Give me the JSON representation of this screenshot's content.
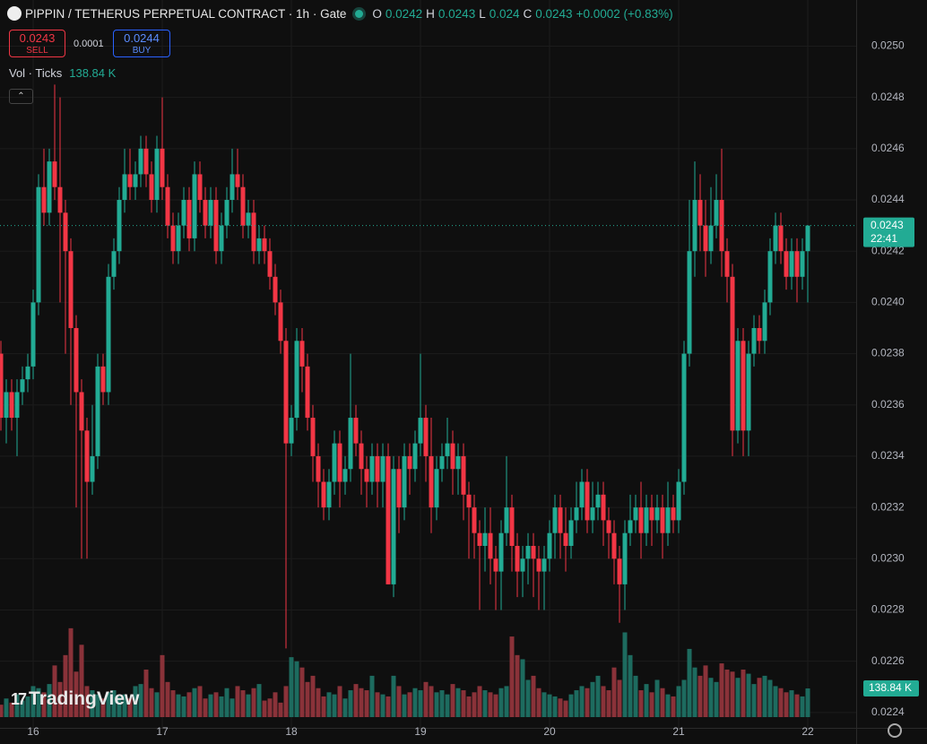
{
  "header": {
    "title": "PIPPIN / TETHERUS PERPETUAL CONTRACT · 1h · Gate",
    "ohlc_letters": [
      "O",
      "H",
      "L",
      "C"
    ],
    "change": "+0.0002 (+0.83%)",
    "sell": 0.0243,
    "sell_label": "SELL",
    "spread": 0.0001,
    "buy": 0.0244,
    "buy_label": "BUY",
    "indicator": "Vol · Ticks",
    "countdown": "22:41",
    "watermark": "TradingView"
  },
  "chart_data": {
    "type": "candlestick",
    "up_color": "#22ab94",
    "down_color": "#f23645",
    "up_volume_color": "#1d6b5f",
    "down_volume_color": "#8a3239",
    "grid": true,
    "categories": [
      null,
      null,
      null,
      null,
      null,
      null,
      "16",
      null,
      null,
      null,
      null,
      null,
      null,
      null,
      null,
      null,
      null,
      null,
      null,
      null,
      null,
      null,
      null,
      null,
      null,
      null,
      null,
      null,
      null,
      null,
      "17",
      null,
      null,
      null,
      null,
      null,
      null,
      null,
      null,
      null,
      null,
      null,
      null,
      null,
      null,
      null,
      null,
      null,
      null,
      null,
      null,
      null,
      null,
      null,
      "18",
      null,
      null,
      null,
      null,
      null,
      null,
      null,
      null,
      null,
      null,
      null,
      null,
      null,
      null,
      null,
      null,
      null,
      null,
      null,
      null,
      null,
      null,
      null,
      "19",
      null,
      null,
      null,
      null,
      null,
      null,
      null,
      null,
      null,
      null,
      null,
      null,
      null,
      null,
      null,
      null,
      null,
      null,
      null,
      null,
      null,
      null,
      null,
      "20",
      null,
      null,
      null,
      null,
      null,
      null,
      null,
      null,
      null,
      null,
      null,
      null,
      null,
      null,
      null,
      null,
      null,
      null,
      null,
      null,
      null,
      null,
      null,
      "21",
      null,
      null,
      null,
      null,
      null,
      null,
      null,
      null,
      null,
      null,
      null,
      null,
      null,
      null,
      null,
      null,
      null,
      null,
      null,
      null,
      null,
      null,
      null,
      "22"
    ],
    "open": [
      0.0238,
      0.02355,
      0.02365,
      0.02355,
      0.02365,
      0.0237,
      0.02375,
      0.024,
      0.02445,
      0.02435,
      0.02455,
      0.02445,
      0.02435,
      0.0242,
      0.0239,
      0.02365,
      0.0235,
      0.0233,
      0.0234,
      0.02375,
      0.02365,
      0.0241,
      0.0242,
      0.0244,
      0.0245,
      0.02445,
      0.0245,
      0.0246,
      0.0245,
      0.0244,
      0.0246,
      0.02445,
      0.0243,
      0.0242,
      0.0243,
      0.0244,
      0.02425,
      0.0245,
      0.0244,
      0.0243,
      0.0244,
      0.0242,
      0.0243,
      0.0244,
      0.0245,
      0.02445,
      0.0243,
      0.02435,
      0.0242,
      0.02425,
      0.0242,
      0.0241,
      0.024,
      0.02385,
      0.02345,
      0.02355,
      0.02385,
      0.02375,
      0.02355,
      0.0234,
      0.0233,
      0.0232,
      0.0233,
      0.02345,
      0.0233,
      0.02335,
      0.02355,
      0.02345,
      0.02335,
      0.0233,
      0.0234,
      0.0233,
      0.0234,
      0.0229,
      0.02335,
      0.0232,
      0.0234,
      0.02335,
      0.02345,
      0.02355,
      0.0234,
      0.0232,
      0.02335,
      0.0234,
      0.02345,
      0.02335,
      0.0234,
      0.02325,
      0.0232,
      0.0231,
      0.02305,
      0.0231,
      0.023,
      0.02295,
      0.0231,
      0.0232,
      0.02305,
      0.02295,
      0.023,
      0.02305,
      0.023,
      0.02295,
      0.023,
      0.0231,
      0.0232,
      0.0231,
      0.02305,
      0.02315,
      0.0232,
      0.0233,
      0.02315,
      0.0232,
      0.02325,
      0.02315,
      0.0231,
      0.023,
      0.0229,
      0.0231,
      0.02315,
      0.0232,
      0.0231,
      0.0232,
      0.02315,
      0.0232,
      0.0231,
      0.0232,
      0.02315,
      0.0233,
      0.0238,
      0.0242,
      0.0244,
      0.0243,
      0.0242,
      0.0243,
      0.0244,
      0.0242,
      0.0241,
      0.0235,
      0.02385,
      0.0235,
      0.0238,
      0.0239,
      0.02385,
      0.024,
      0.0242,
      0.0243,
      0.0242,
      0.0241,
      0.0242,
      0.0241,
      0.0242
    ],
    "high": [
      0.02385,
      0.0237,
      0.0237,
      0.0237,
      0.02375,
      0.0238,
      0.02405,
      0.0245,
      0.0246,
      0.0246,
      0.02485,
      0.0248,
      0.0244,
      0.02425,
      0.02395,
      0.0237,
      0.02355,
      0.0236,
      0.0238,
      0.0238,
      0.02415,
      0.02425,
      0.02445,
      0.0246,
      0.0246,
      0.02455,
      0.02465,
      0.02465,
      0.02455,
      0.02465,
      0.0248,
      0.0245,
      0.02435,
      0.02435,
      0.02445,
      0.02445,
      0.02455,
      0.02455,
      0.02445,
      0.02445,
      0.02445,
      0.02435,
      0.02445,
      0.0246,
      0.0246,
      0.0245,
      0.0244,
      0.0244,
      0.0243,
      0.0243,
      0.02425,
      0.02415,
      0.02405,
      0.0239,
      0.0236,
      0.0239,
      0.0239,
      0.0238,
      0.0236,
      0.02345,
      0.02335,
      0.02335,
      0.0235,
      0.0235,
      0.0234,
      0.0238,
      0.0236,
      0.0235,
      0.0234,
      0.02345,
      0.02345,
      0.02345,
      0.02345,
      0.0234,
      0.0234,
      0.02345,
      0.02345,
      0.0235,
      0.0238,
      0.0236,
      0.02355,
      0.0234,
      0.02345,
      0.02355,
      0.0235,
      0.02345,
      0.02345,
      0.0233,
      0.02325,
      0.02315,
      0.0232,
      0.0232,
      0.02305,
      0.02315,
      0.0234,
      0.02325,
      0.0231,
      0.02305,
      0.0231,
      0.0231,
      0.02305,
      0.02305,
      0.02315,
      0.02325,
      0.02325,
      0.0232,
      0.0232,
      0.0233,
      0.02335,
      0.02335,
      0.0233,
      0.0233,
      0.0233,
      0.0232,
      0.02315,
      0.02305,
      0.02315,
      0.02325,
      0.02325,
      0.0233,
      0.02325,
      0.02325,
      0.02325,
      0.02325,
      0.0233,
      0.02325,
      0.02335,
      0.02385,
      0.0244,
      0.02455,
      0.0245,
      0.0244,
      0.02445,
      0.0245,
      0.0246,
      0.02425,
      0.02415,
      0.0239,
      0.0239,
      0.02385,
      0.02395,
      0.02395,
      0.02405,
      0.02425,
      0.02435,
      0.02435,
      0.02425,
      0.02425,
      0.02425,
      0.02425,
      0.0243
    ],
    "low": [
      0.0235,
      0.02345,
      0.0235,
      0.0234,
      0.0236,
      0.02365,
      0.0237,
      0.02395,
      0.0243,
      0.0243,
      0.0244,
      0.024,
      0.0238,
      0.0236,
      0.0232,
      0.023,
      0.023,
      0.02325,
      0.02335,
      0.0236,
      0.0236,
      0.02405,
      0.02415,
      0.02435,
      0.0244,
      0.0244,
      0.02445,
      0.02445,
      0.02435,
      0.02435,
      0.0244,
      0.02425,
      0.02415,
      0.02415,
      0.02425,
      0.0242,
      0.0242,
      0.02435,
      0.02425,
      0.02425,
      0.02415,
      0.02415,
      0.02425,
      0.02435,
      0.0244,
      0.02425,
      0.02425,
      0.02415,
      0.02415,
      0.02415,
      0.02405,
      0.02395,
      0.0238,
      0.02265,
      0.0234,
      0.0235,
      0.02365,
      0.0235,
      0.0233,
      0.0232,
      0.02315,
      0.02315,
      0.02325,
      0.0232,
      0.02325,
      0.0233,
      0.0234,
      0.02325,
      0.0232,
      0.02325,
      0.0232,
      0.0232,
      0.0229,
      0.02285,
      0.0231,
      0.02315,
      0.02325,
      0.0233,
      0.0234,
      0.0233,
      0.0231,
      0.02315,
      0.0233,
      0.02335,
      0.02325,
      0.02325,
      0.02315,
      0.023,
      0.023,
      0.0228,
      0.02295,
      0.0229,
      0.0228,
      0.0228,
      0.02305,
      0.02295,
      0.02285,
      0.02285,
      0.0229,
      0.02285,
      0.0228,
      0.0228,
      0.02295,
      0.023,
      0.023,
      0.02295,
      0.023,
      0.0231,
      0.02315,
      0.0231,
      0.0231,
      0.02315,
      0.02305,
      0.023,
      0.0229,
      0.02275,
      0.0228,
      0.02305,
      0.0231,
      0.023,
      0.02305,
      0.02305,
      0.0231,
      0.023,
      0.02305,
      0.0231,
      0.0231,
      0.02325,
      0.02375,
      0.0241,
      0.0242,
      0.0241,
      0.02415,
      0.02425,
      0.0241,
      0.024,
      0.0234,
      0.02345,
      0.0234,
      0.0234,
      0.02375,
      0.0238,
      0.0238,
      0.02395,
      0.02415,
      0.02415,
      0.02405,
      0.02405,
      0.024,
      0.02405,
      0.024
    ],
    "close": [
      0.02355,
      0.02365,
      0.02355,
      0.02365,
      0.0237,
      0.02375,
      0.024,
      0.02445,
      0.02435,
      0.02455,
      0.02445,
      0.02435,
      0.0242,
      0.0239,
      0.02365,
      0.0235,
      0.0233,
      0.0234,
      0.02375,
      0.02365,
      0.0241,
      0.0242,
      0.0244,
      0.0245,
      0.02445,
      0.0245,
      0.0246,
      0.0245,
      0.0244,
      0.0246,
      0.02445,
      0.0243,
      0.0242,
      0.0243,
      0.0244,
      0.02425,
      0.0245,
      0.0244,
      0.0243,
      0.0244,
      0.0242,
      0.0243,
      0.0244,
      0.0245,
      0.02445,
      0.0243,
      0.02435,
      0.0242,
      0.02425,
      0.0242,
      0.0241,
      0.024,
      0.02385,
      0.02345,
      0.02355,
      0.02385,
      0.02375,
      0.02355,
      0.0234,
      0.0233,
      0.0232,
      0.0233,
      0.02345,
      0.0233,
      0.02335,
      0.02355,
      0.02345,
      0.02335,
      0.0233,
      0.0234,
      0.0233,
      0.0234,
      0.0229,
      0.02335,
      0.0232,
      0.0234,
      0.02335,
      0.02345,
      0.02355,
      0.0234,
      0.0232,
      0.02335,
      0.0234,
      0.02345,
      0.02335,
      0.0234,
      0.02325,
      0.0232,
      0.0231,
      0.02305,
      0.0231,
      0.023,
      0.02295,
      0.0231,
      0.0232,
      0.02305,
      0.02295,
      0.023,
      0.02305,
      0.023,
      0.02295,
      0.023,
      0.0231,
      0.0232,
      0.0231,
      0.02305,
      0.02315,
      0.0232,
      0.0233,
      0.02315,
      0.0232,
      0.02325,
      0.02315,
      0.0231,
      0.023,
      0.0229,
      0.0231,
      0.02315,
      0.0232,
      0.0231,
      0.0232,
      0.02315,
      0.0232,
      0.0231,
      0.0232,
      0.02315,
      0.0233,
      0.0238,
      0.0242,
      0.0244,
      0.0243,
      0.0242,
      0.0243,
      0.0244,
      0.0242,
      0.0241,
      0.0235,
      0.02385,
      0.0235,
      0.0238,
      0.0239,
      0.02385,
      0.024,
      0.0242,
      0.0243,
      0.0242,
      0.0241,
      0.0242,
      0.0241,
      0.0242,
      0.0243
    ],
    "volumes": [
      60,
      90,
      70,
      110,
      80,
      100,
      150,
      140,
      120,
      160,
      250,
      170,
      300,
      430,
      220,
      350,
      150,
      130,
      110,
      90,
      120,
      130,
      100,
      110,
      90,
      150,
      160,
      230,
      140,
      120,
      300,
      170,
      130,
      110,
      100,
      120,
      140,
      150,
      90,
      110,
      120,
      100,
      140,
      90,
      150,
      130,
      110,
      140,
      160,
      80,
      90,
      120,
      70,
      150,
      290,
      270,
      240,
      170,
      200,
      140,
      100,
      120,
      110,
      150,
      90,
      130,
      160,
      140,
      130,
      200,
      120,
      110,
      100,
      200,
      150,
      110,
      120,
      140,
      130,
      170,
      150,
      120,
      130,
      110,
      160,
      140,
      130,
      100,
      120,
      150,
      130,
      120,
      110,
      140,
      150,
      390,
      300,
      280,
      180,
      200,
      140,
      120,
      110,
      100,
      90,
      80,
      110,
      130,
      150,
      140,
      170,
      200,
      150,
      130,
      240,
      180,
      410,
      300,
      200,
      130,
      160,
      120,
      180,
      140,
      110,
      100,
      150,
      180,
      330,
      240,
      200,
      250,
      190,
      170,
      260,
      230,
      220,
      190,
      230,
      210,
      160,
      190,
      200,
      180,
      150,
      140,
      120,
      130,
      110,
      100,
      138.84
    ],
    "volume_last_label": "138.84 K",
    "ylim": [
      0.02234,
      0.02518
    ],
    "volume_ylim": [
      0,
      3470
    ],
    "yticks": [
      0.0224,
      0.0226,
      0.0228,
      {
        "value": 0.023,
        "label": "0.0230"
      },
      0.0232,
      0.0234,
      0.0236,
      0.0238,
      {
        "value": 0.024,
        "label": "0.0240"
      },
      0.0242,
      0.0244,
      0.0246,
      0.0248,
      {
        "value": 0.025,
        "label": "0.0250"
      }
    ]
  }
}
